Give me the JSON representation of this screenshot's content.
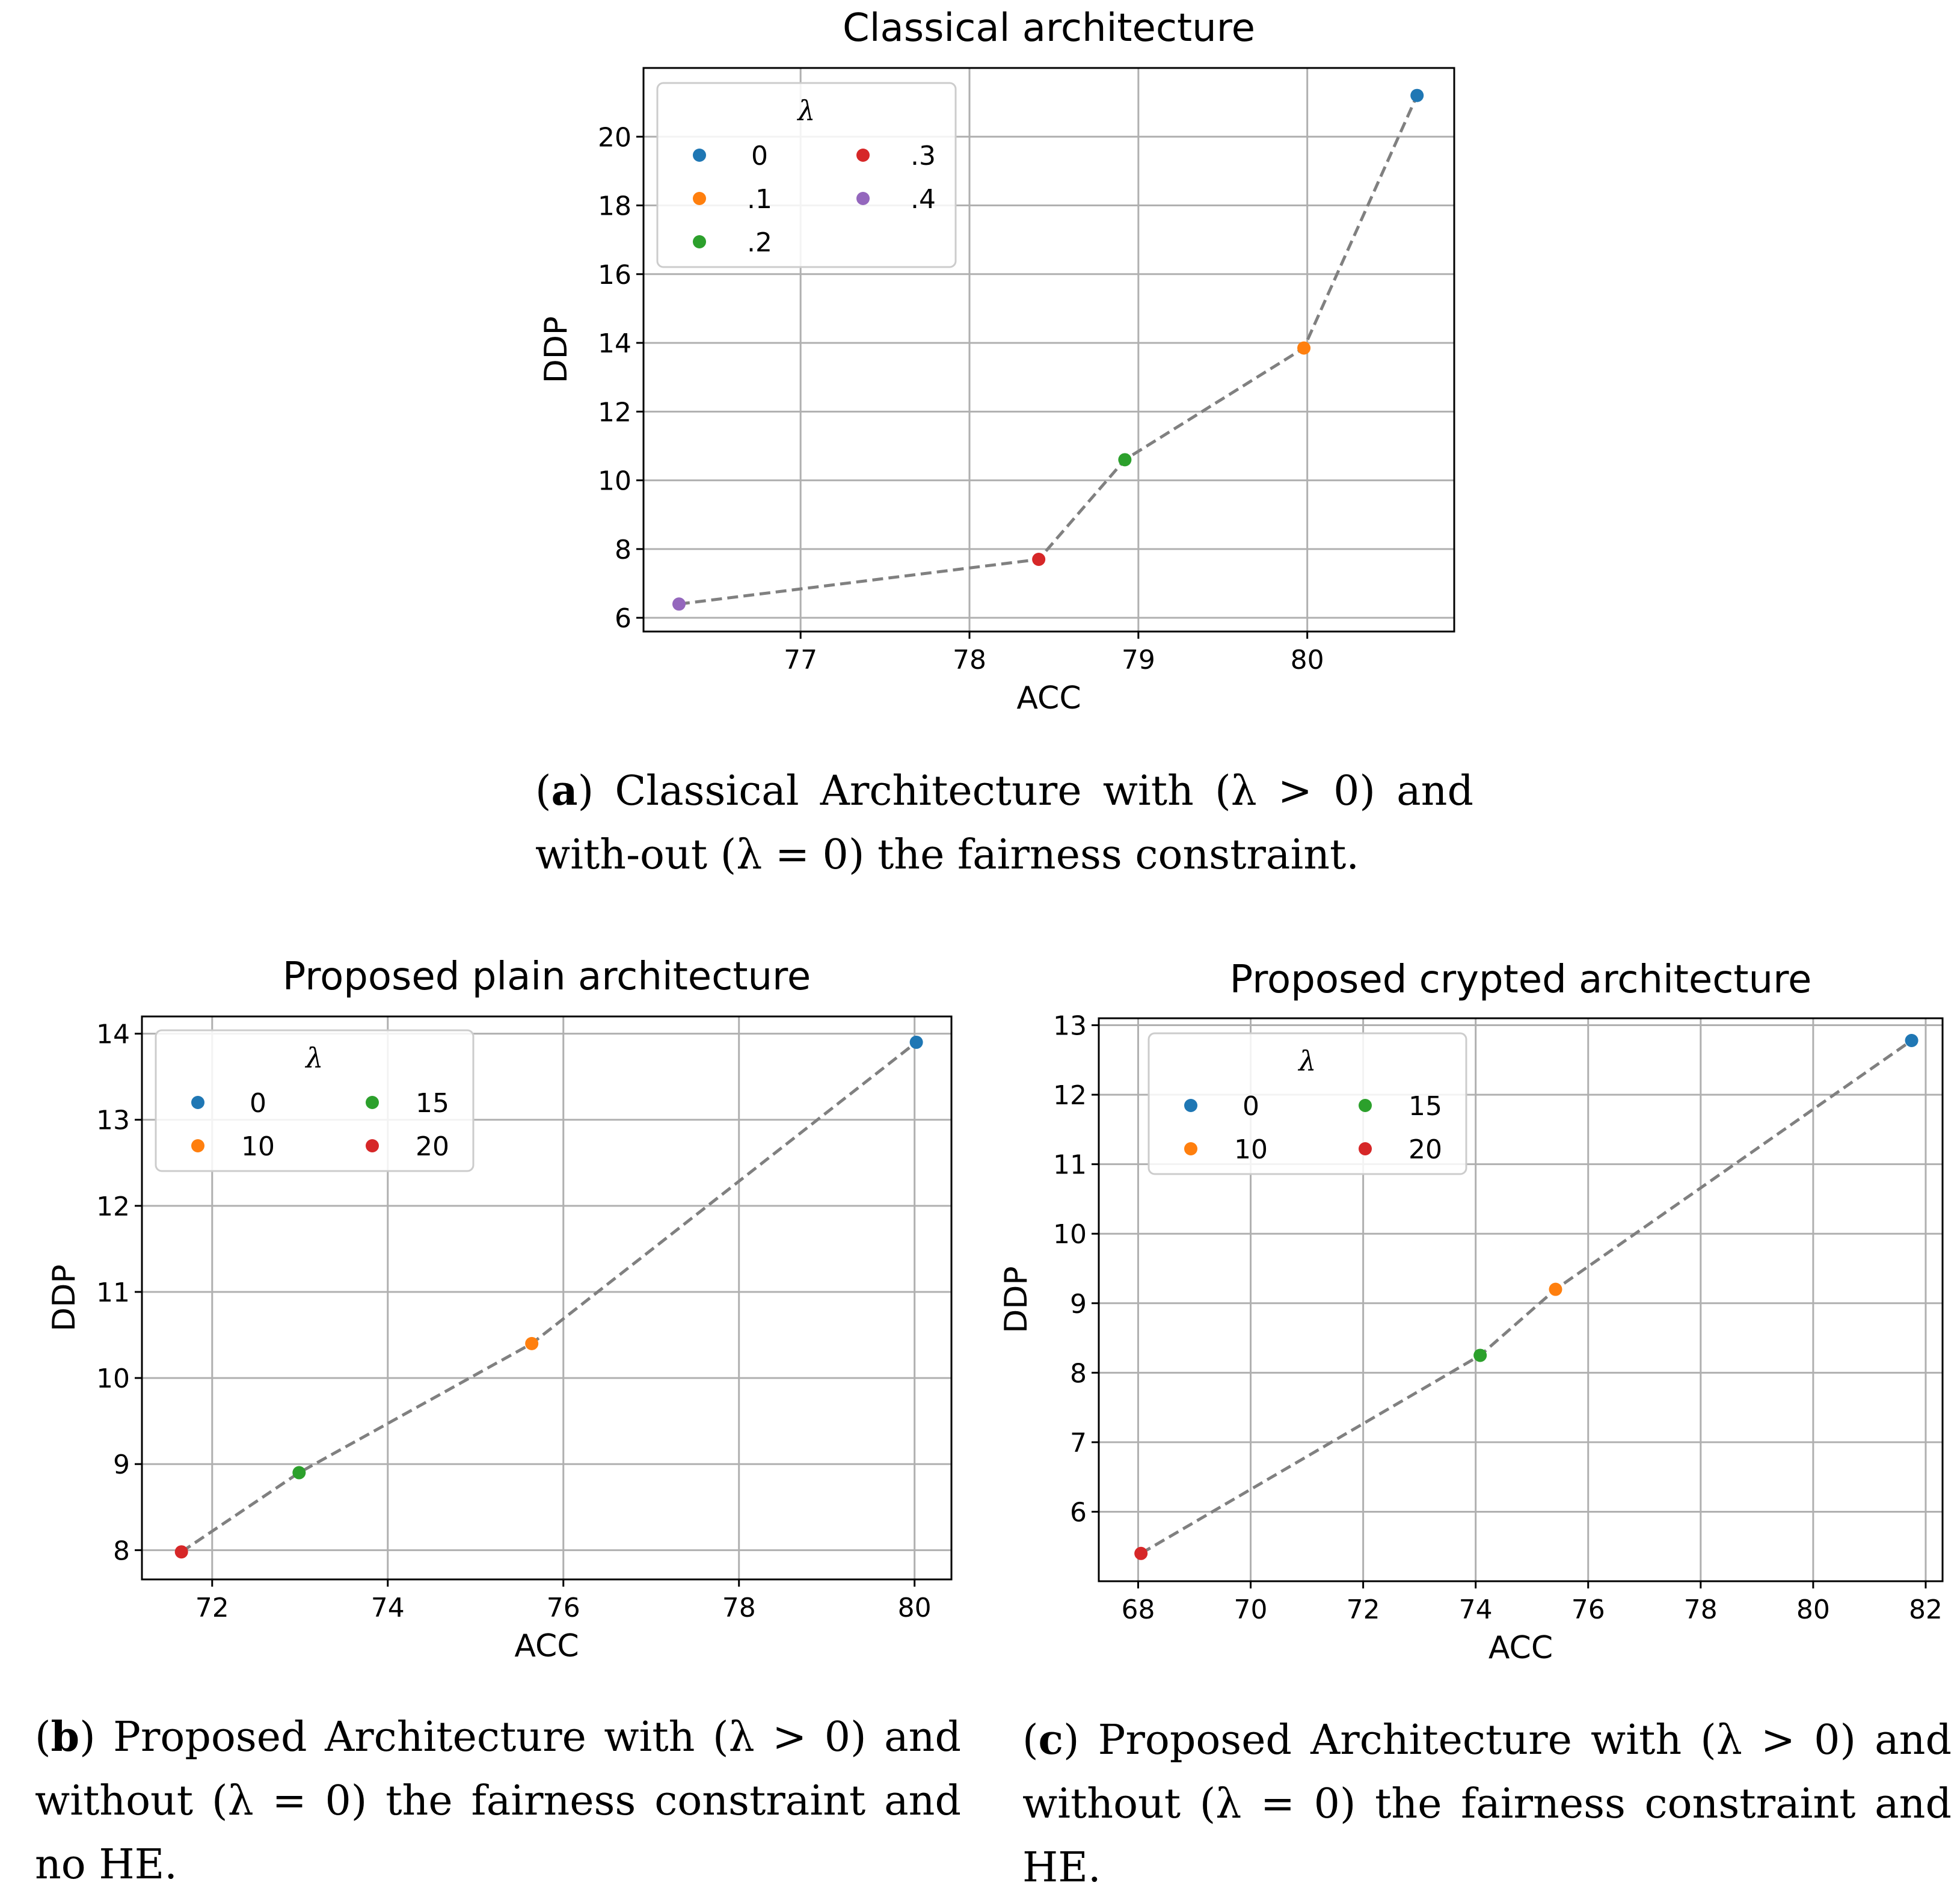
{
  "chart_data": [
    {
      "id": "a",
      "type": "scatter",
      "title": "Classical architecture",
      "xlabel": "ACC",
      "ylabel": "DDP",
      "xlim": [
        76.07,
        80.87
      ],
      "ylim": [
        5.6,
        22.0
      ],
      "xticks": [
        77,
        78,
        79,
        80
      ],
      "yticks": [
        6,
        8,
        10,
        12,
        14,
        16,
        18,
        20
      ],
      "xtick_labels": [
        "77",
        "78",
        "79",
        "80"
      ],
      "ytick_labels": [
        "6",
        "8",
        "10",
        "12",
        "14",
        "16",
        "18",
        "20"
      ],
      "grid": true,
      "line_style": "dashed",
      "line_color": "#808080",
      "legend": {
        "title": "λ",
        "position": "top-left",
        "columns": 2
      },
      "points": [
        {
          "label": "0",
          "x": 80.65,
          "y": 21.2,
          "color": "#1f77b4"
        },
        {
          "label": ".1",
          "x": 79.98,
          "y": 13.85,
          "color": "#ff7f0e"
        },
        {
          "label": ".2",
          "x": 78.92,
          "y": 10.6,
          "color": "#2ca02c"
        },
        {
          "label": ".3",
          "x": 78.41,
          "y": 7.7,
          "color": "#d62728"
        },
        {
          "label": ".4",
          "x": 76.28,
          "y": 6.4,
          "color": "#9467bd"
        }
      ],
      "line_order": [
        4,
        3,
        2,
        1,
        0
      ]
    },
    {
      "id": "b",
      "type": "scatter",
      "title": "Proposed plain architecture",
      "xlabel": "ACC",
      "ylabel": "DDP",
      "xlim": [
        71.2,
        80.42
      ],
      "ylim": [
        7.66,
        14.2
      ],
      "xticks": [
        72,
        74,
        76,
        78,
        80
      ],
      "yticks": [
        8,
        9,
        10,
        11,
        12,
        13,
        14
      ],
      "xtick_labels": [
        "72",
        "74",
        "76",
        "78",
        "80"
      ],
      "ytick_labels": [
        "8",
        "9",
        "10",
        "11",
        "12",
        "13",
        "14"
      ],
      "grid": true,
      "line_style": "dashed",
      "line_color": "#808080",
      "legend": {
        "title": "λ",
        "position": "top-left",
        "columns": 2
      },
      "points": [
        {
          "label": "0",
          "x": 80.02,
          "y": 13.9,
          "color": "#1f77b4"
        },
        {
          "label": "10",
          "x": 75.64,
          "y": 10.4,
          "color": "#ff7f0e"
        },
        {
          "label": "15",
          "x": 72.99,
          "y": 8.9,
          "color": "#2ca02c"
        },
        {
          "label": "20",
          "x": 71.65,
          "y": 7.98,
          "color": "#d62728"
        }
      ],
      "line_order": [
        3,
        2,
        1,
        0
      ]
    },
    {
      "id": "c",
      "type": "scatter",
      "title": "Proposed crypted architecture",
      "xlabel": "ACC",
      "ylabel": "DDP",
      "xlim": [
        67.3,
        82.3
      ],
      "ylim": [
        5.0,
        13.1
      ],
      "xticks": [
        68,
        70,
        72,
        74,
        76,
        78,
        80,
        82
      ],
      "yticks": [
        6,
        7,
        8,
        9,
        10,
        11,
        12,
        13
      ],
      "xtick_labels": [
        "68",
        "70",
        "72",
        "74",
        "76",
        "78",
        "80",
        "82"
      ],
      "ytick_labels": [
        "6",
        "7",
        "8",
        "9",
        "10",
        "11",
        "12",
        "13"
      ],
      "grid": true,
      "line_style": "dashed",
      "line_color": "#808080",
      "legend": {
        "title": "λ",
        "position": "top-left",
        "columns": 2
      },
      "points": [
        {
          "label": "0",
          "x": 81.75,
          "y": 12.78,
          "color": "#1f77b4"
        },
        {
          "label": "10",
          "x": 75.42,
          "y": 9.2,
          "color": "#ff7f0e"
        },
        {
          "label": "15",
          "x": 74.08,
          "y": 8.25,
          "color": "#2ca02c"
        },
        {
          "label": "20",
          "x": 68.05,
          "y": 5.4,
          "color": "#d62728"
        }
      ],
      "line_order": [
        3,
        2,
        1,
        0
      ]
    }
  ],
  "captions": {
    "a": {
      "letter": "a",
      "text": "Classical Architecture with (λ > 0) and with-out (λ = 0) the fairness constraint."
    },
    "b": {
      "letter": "b",
      "text": "Proposed Architecture with (λ > 0) and without (λ = 0) the fairness constraint and no HE."
    },
    "c": {
      "letter": "c",
      "text": "Proposed Architecture with (λ > 0) and without (λ = 0) the fairness constraint and HE."
    }
  }
}
